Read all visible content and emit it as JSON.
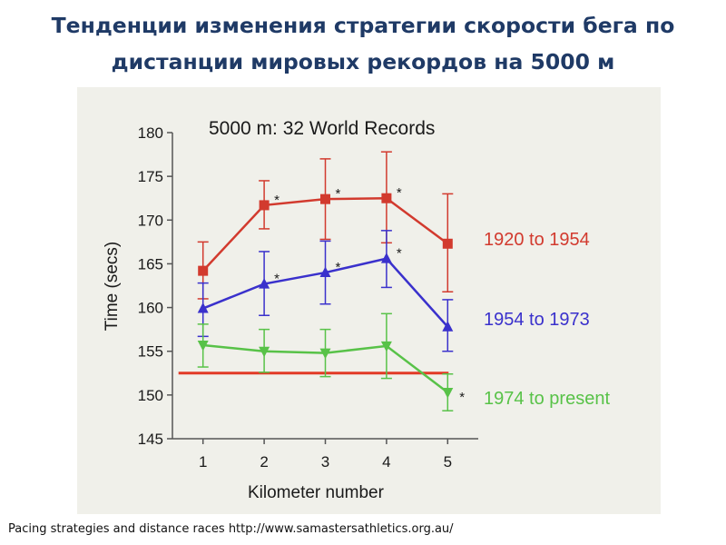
{
  "slide": {
    "title_line1": "Тенденции изменения стратегии скорости бега по",
    "title_line2": "дистанции мировых рекордов на 5000 м",
    "caption": "Pacing strategies and distance races http://www.samastersathletics.org.au/"
  },
  "colors": {
    "background": "#ffffff",
    "panel": "#f0f0ea",
    "title": "#1f3a66",
    "series_1920": "#d23a2e",
    "series_1954": "#3a31cc",
    "series_1974": "#58c248",
    "reference_line": "#e23a26"
  },
  "chart_data": {
    "type": "line",
    "title": "5000 m: 32 World Records",
    "xlabel": "Kilometer number",
    "ylabel": "Time (secs)",
    "x": [
      1,
      2,
      3,
      4,
      5
    ],
    "xlim": [
      0.5,
      5.5
    ],
    "ylim": [
      145,
      180
    ],
    "yticks": [
      145,
      150,
      155,
      160,
      165,
      170,
      175,
      180
    ],
    "grid": false,
    "legend": "right, labels placed next to series",
    "series": [
      {
        "name": "1920 to 1954",
        "color": "#d23a2e",
        "marker": "square",
        "values": [
          164.2,
          171.7,
          172.4,
          172.5,
          167.3
        ],
        "err_low": [
          161.0,
          169.0,
          167.8,
          167.4,
          161.8
        ],
        "err_high": [
          167.5,
          174.5,
          177.0,
          177.8,
          173.0
        ],
        "significant": [
          false,
          true,
          true,
          true,
          false
        ]
      },
      {
        "name": "1954 to 1973",
        "color": "#3a31cc",
        "marker": "triangle-up",
        "values": [
          159.9,
          162.7,
          164.0,
          165.6,
          157.8
        ],
        "err_low": [
          156.7,
          159.1,
          160.4,
          162.3,
          155.0
        ],
        "err_high": [
          162.8,
          166.4,
          167.6,
          168.8,
          160.9
        ],
        "significant": [
          false,
          true,
          true,
          true,
          false
        ]
      },
      {
        "name": "1974 to present",
        "color": "#58c248",
        "marker": "triangle-down",
        "values": [
          155.7,
          155.0,
          154.8,
          155.6,
          150.3
        ],
        "err_low": [
          153.2,
          152.6,
          152.1,
          151.9,
          148.2
        ],
        "err_high": [
          158.1,
          157.5,
          157.5,
          159.3,
          152.4
        ],
        "significant": [
          false,
          false,
          false,
          false,
          true
        ]
      }
    ],
    "reference_line": {
      "y": 152.5,
      "x_from": 1,
      "x_to": 5,
      "color": "#e23a26"
    },
    "significance_marker": "*"
  }
}
